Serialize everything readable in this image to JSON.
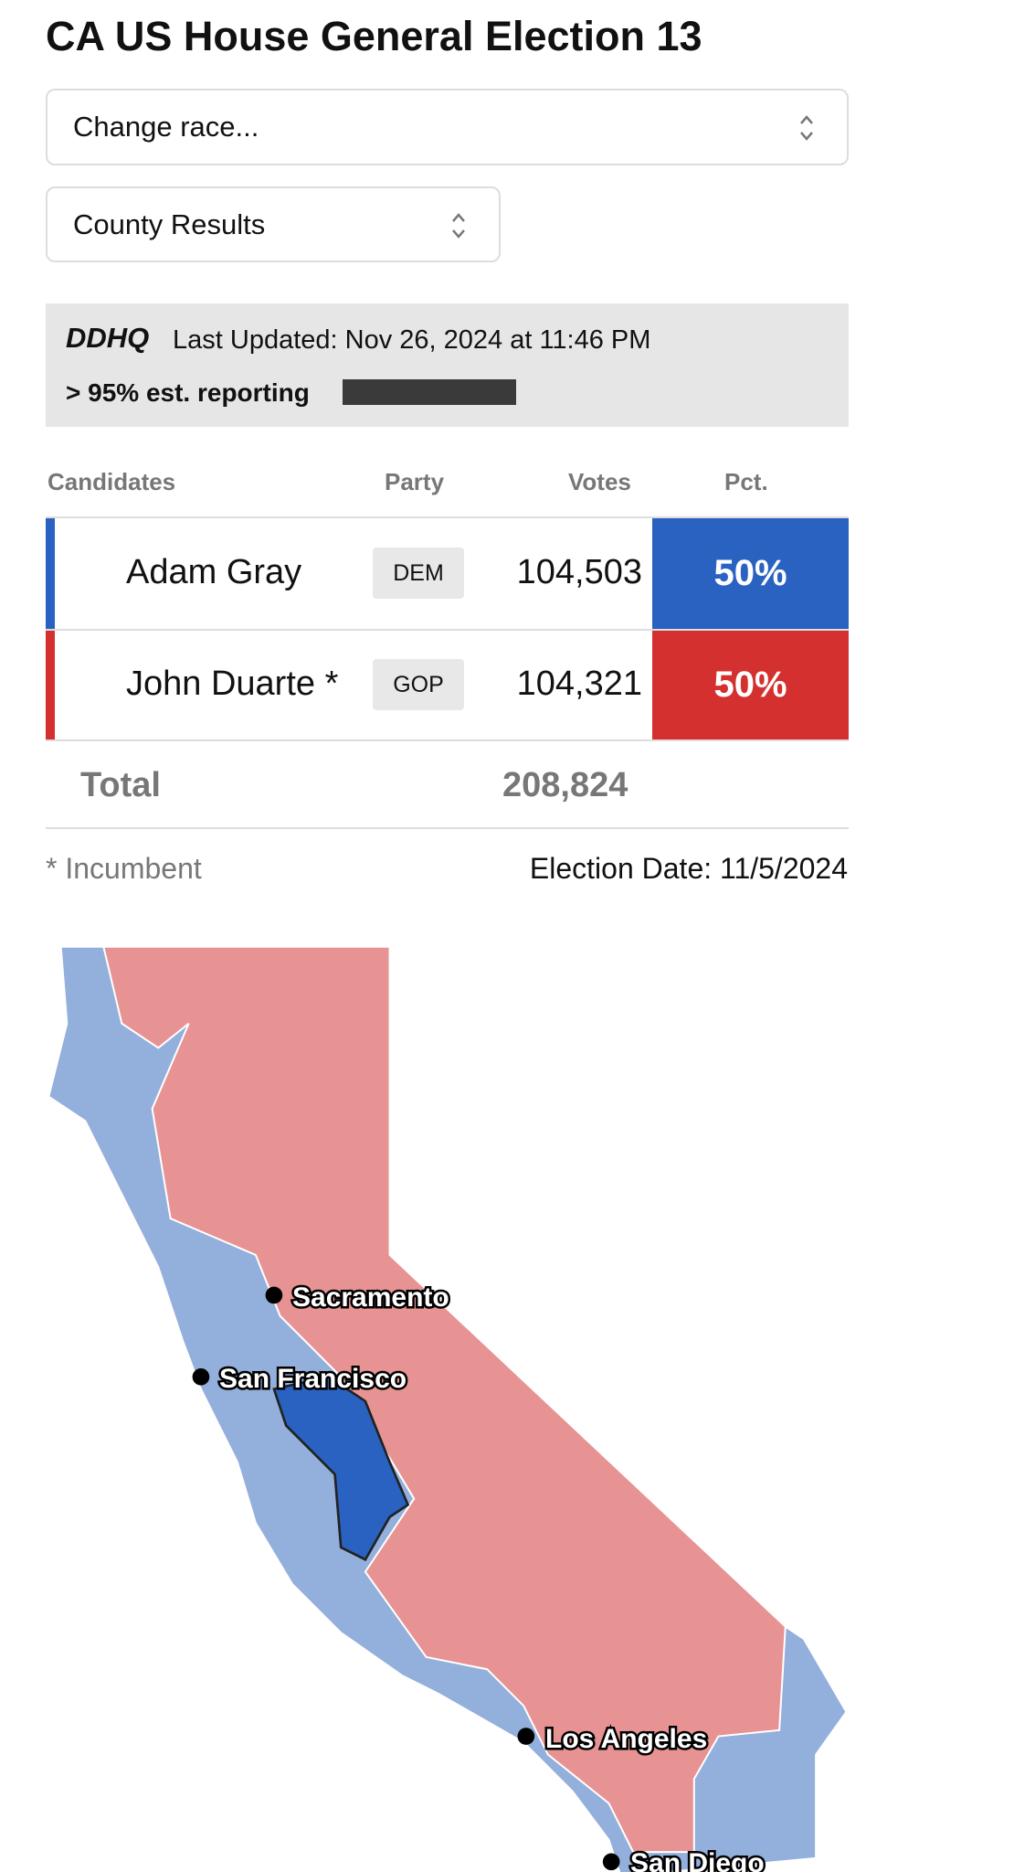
{
  "header": {
    "title": "CA US House General Election 13"
  },
  "selects": [
    "Change race...",
    "County Results"
  ],
  "status": {
    "source": "DDHQ",
    "updated": "Last Updated: Nov 26, 2024 at 11:46 PM",
    "reporting": "> 95% est. reporting"
  },
  "table": {
    "columns": [
      "Candidates",
      "Party",
      "Votes",
      "Pct."
    ],
    "rows": [
      [
        "Adam Gray",
        "DEM",
        "104,503",
        "50%"
      ],
      [
        "John Duarte *",
        "GOP",
        "104,321",
        "50%"
      ]
    ],
    "total": [
      "Total",
      "208,824"
    ]
  },
  "footer": {
    "note": "* Incumbent",
    "date": "Election Date: 11/5/2024"
  },
  "map": {
    "cities": [
      "Sacramento",
      "San Francisco",
      "Los Angeles",
      "San Diego"
    ]
  }
}
